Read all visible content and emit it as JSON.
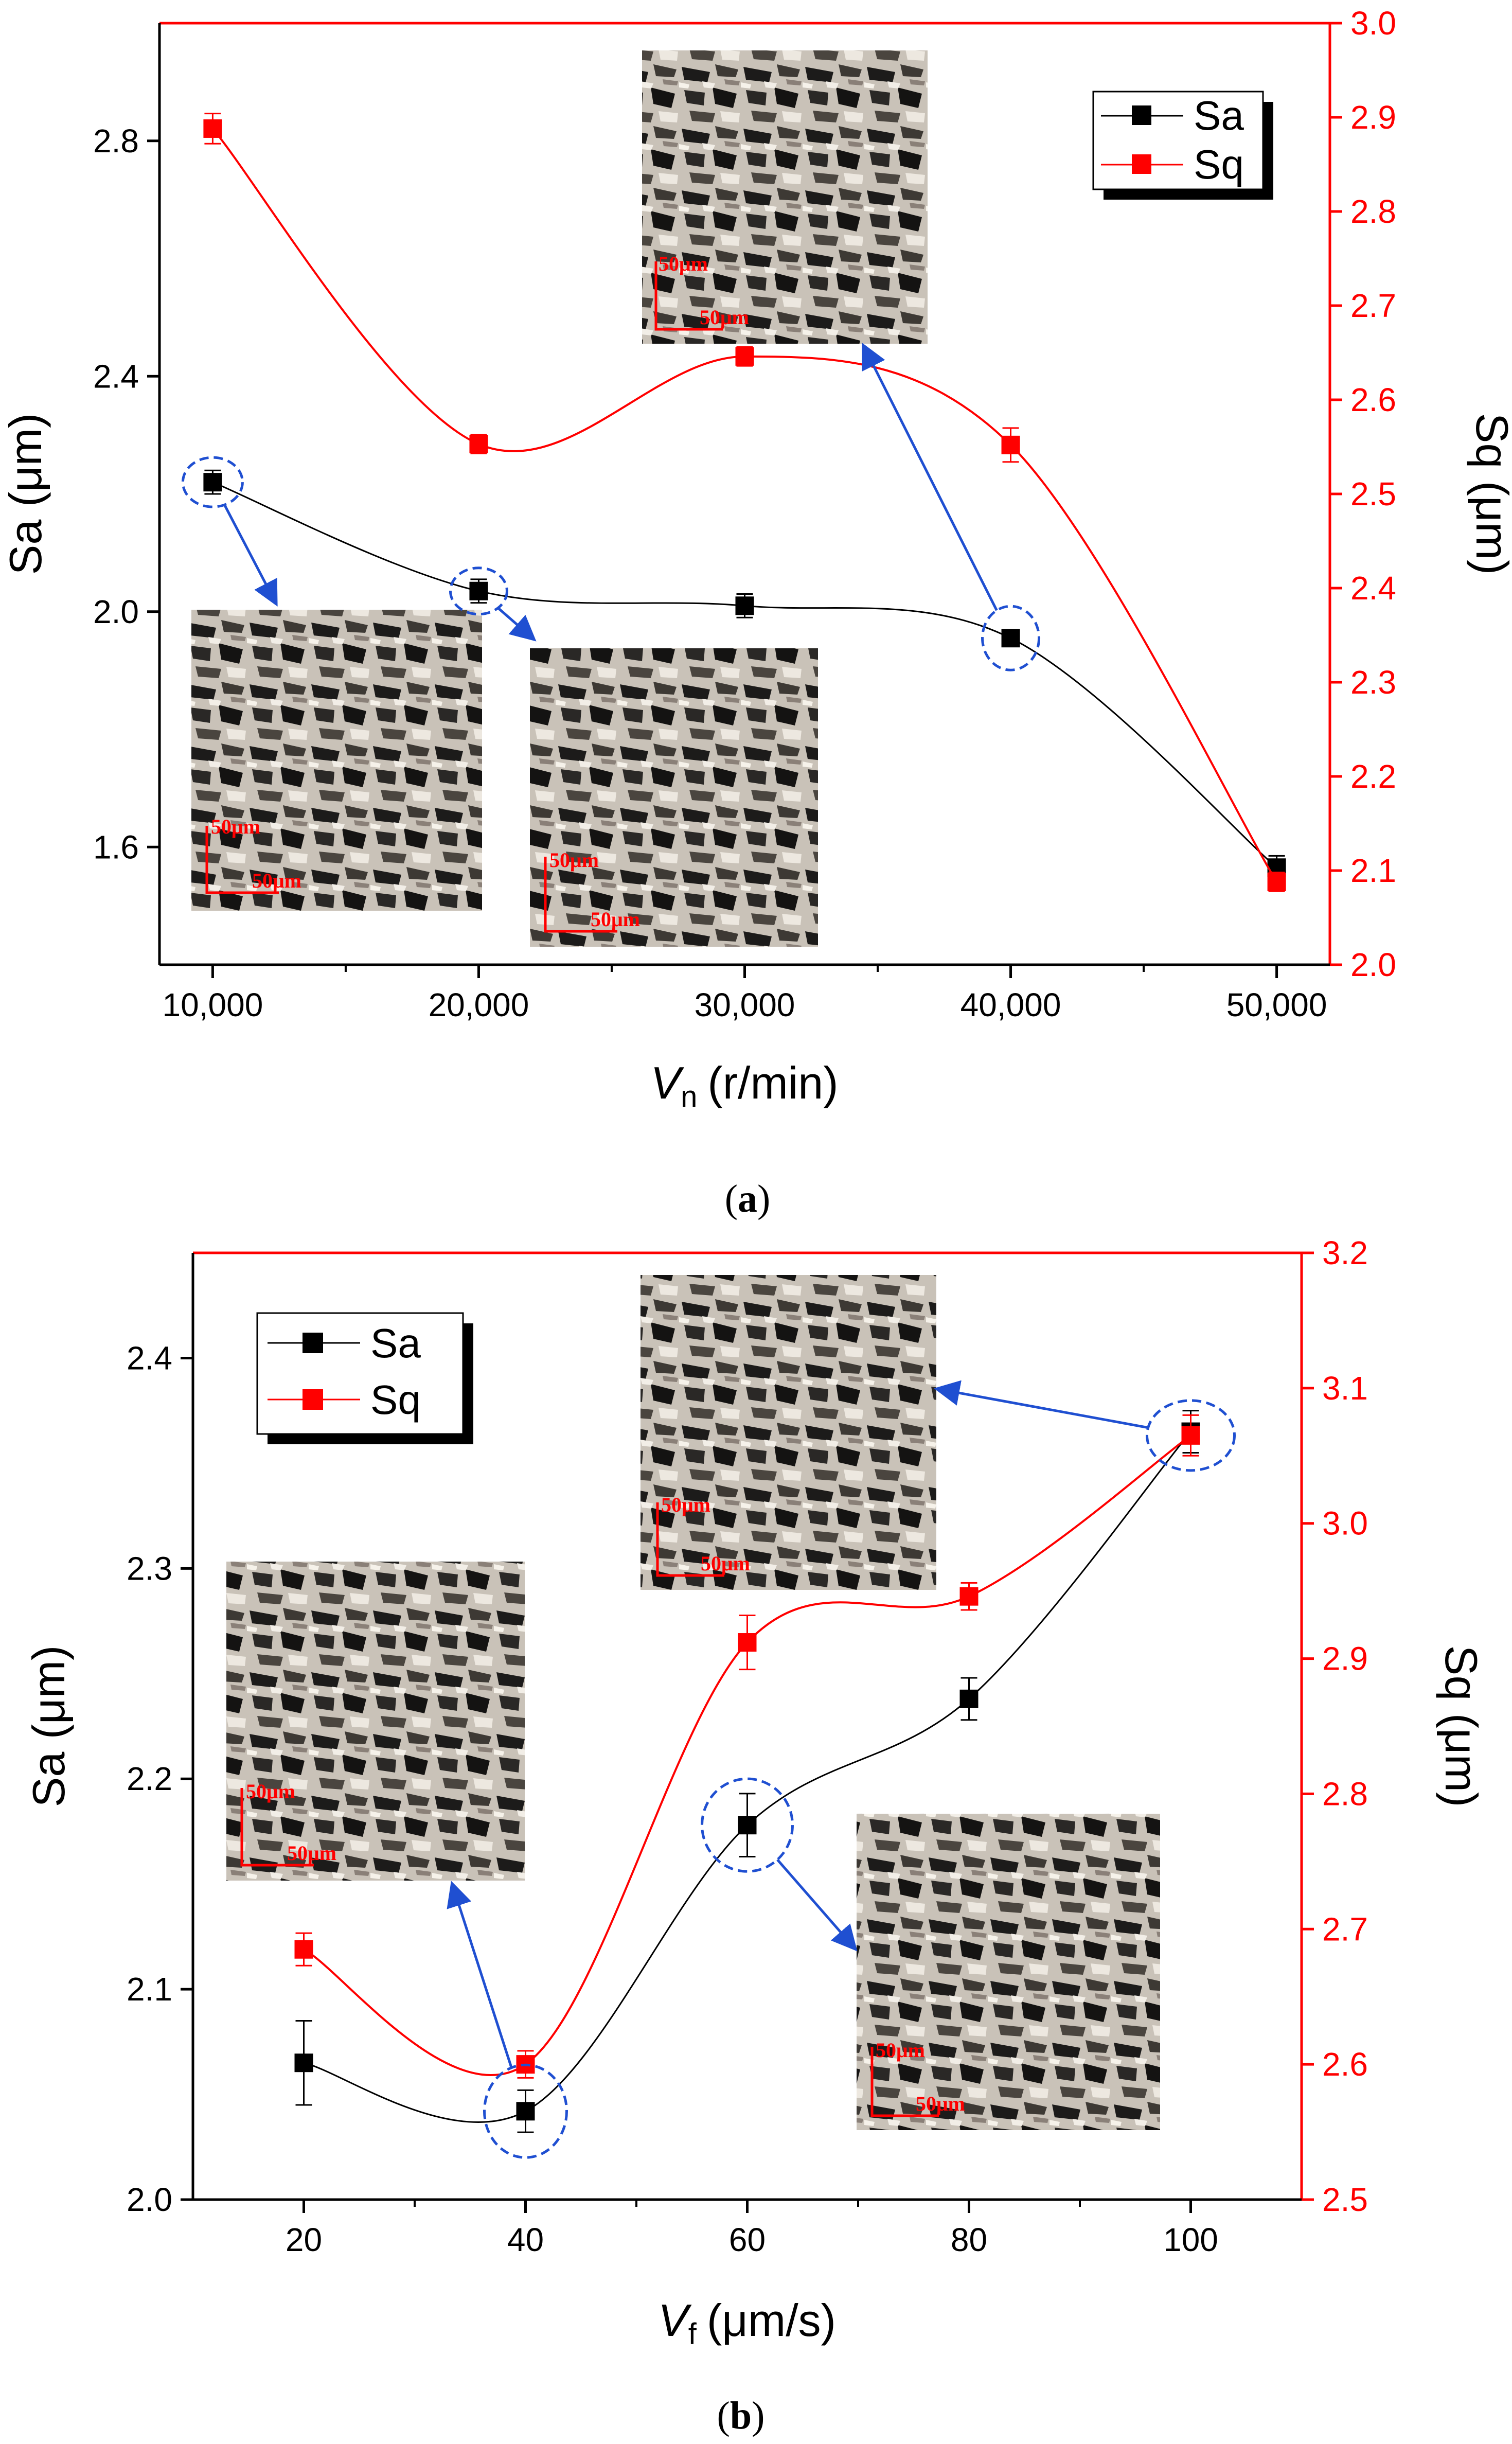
{
  "colors": {
    "sa": "#000000",
    "sq": "#ff0000",
    "callout": "#1f4fd1"
  },
  "chart_data": [
    {
      "type": "line",
      "panel_label": "a",
      "xlabel_main": "V",
      "xlabel_sub": "n",
      "xlabel_unit": "(r/min)",
      "ylabel": "Sa (μm)",
      "y2label": "Sq (μm)",
      "x_ticks": [
        "10,000",
        "20,000",
        "30,000",
        "40,000",
        "50,000"
      ],
      "x": [
        10000,
        20000,
        30000,
        40000,
        50000
      ],
      "xlim": [
        8000,
        52000
      ],
      "ylim": [
        1.4,
        3.0
      ],
      "y_ticks": [
        "1.6",
        "2.0",
        "2.4",
        "2.8"
      ],
      "y2lim": [
        2.0,
        3.0
      ],
      "y2_ticks": [
        "2.0",
        "2.1",
        "2.2",
        "2.3",
        "2.4",
        "2.5",
        "2.6",
        "2.7",
        "2.8",
        "2.9",
        "3.0"
      ],
      "legend_position": "top-right",
      "series": [
        {
          "name": "Sa",
          "axis": "left",
          "values": [
            2.22,
            2.035,
            2.01,
            1.955,
            1.565
          ],
          "errors": [
            0.02,
            0.02,
            0.02,
            0.01,
            0.02
          ]
        },
        {
          "name": "Sq",
          "axis": "right",
          "values": [
            2.888,
            2.553,
            2.646,
            2.552,
            2.088
          ],
          "errors": [
            0.016,
            0.01,
            0.01,
            0.018,
            0.01
          ]
        }
      ],
      "scale_bar_label": "50μm"
    },
    {
      "type": "line",
      "panel_label": "b",
      "xlabel_main": "V",
      "xlabel_sub": "f",
      "xlabel_unit": "(μm/s)",
      "ylabel": "Sa (μm)",
      "y2label": "Sq (μm)",
      "x_ticks": [
        "20",
        "40",
        "60",
        "80",
        "100"
      ],
      "x": [
        20,
        40,
        60,
        80,
        100
      ],
      "xlim": [
        10,
        110
      ],
      "ylim": [
        2.0,
        2.45
      ],
      "y_ticks": [
        "2.0",
        "2.1",
        "2.2",
        "2.3",
        "2.4"
      ],
      "y2lim": [
        2.5,
        3.2
      ],
      "y2_ticks": [
        "2.5",
        "2.6",
        "2.7",
        "2.8",
        "2.9",
        "3.0",
        "3.1",
        "3.2"
      ],
      "legend_position": "top-left",
      "series": [
        {
          "name": "Sa",
          "axis": "left",
          "values": [
            2.065,
            2.042,
            2.178,
            2.238,
            2.365
          ],
          "errors": [
            0.02,
            0.01,
            0.015,
            0.01,
            0.01
          ]
        },
        {
          "name": "Sq",
          "axis": "right",
          "values": [
            2.685,
            2.6,
            2.912,
            2.946,
            3.065
          ],
          "errors": [
            0.012,
            0.01,
            0.02,
            0.01,
            0.015
          ]
        }
      ],
      "scale_bar_label": "50μm"
    }
  ]
}
